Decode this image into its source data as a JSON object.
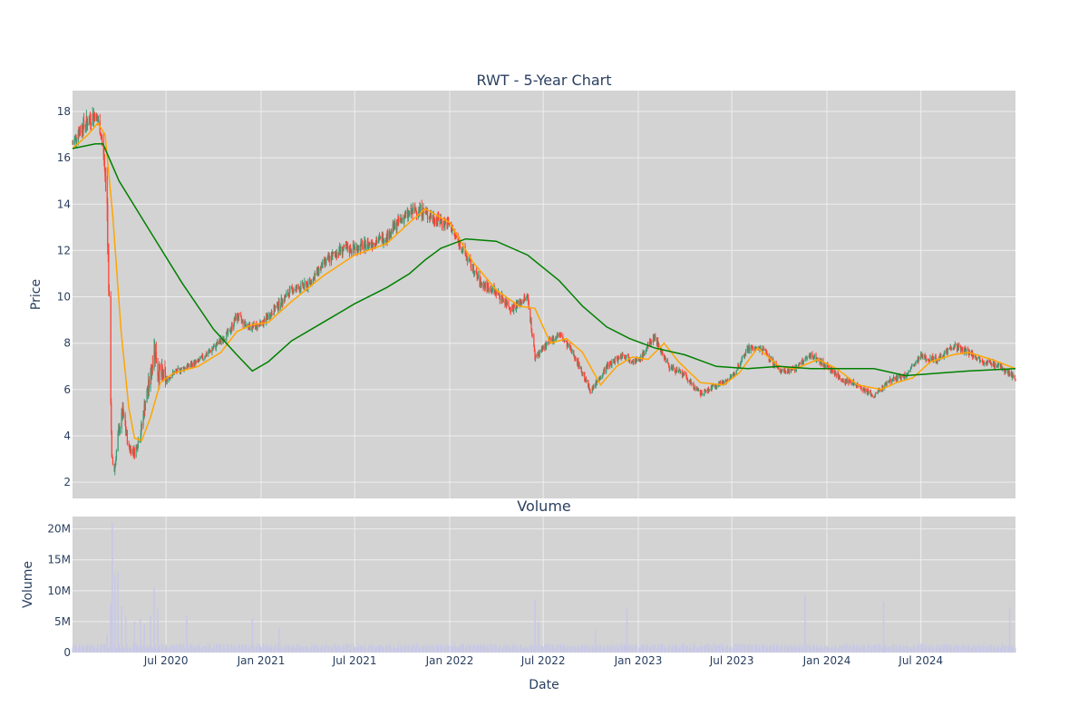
{
  "chart_data": [
    {
      "type": "candlestick",
      "title": "RWT - 5-Year Chart",
      "ylabel": "Price",
      "ylim": [
        1.3,
        18.9
      ],
      "yticks": [
        "2",
        "4",
        "6",
        "8",
        "10",
        "12",
        "14",
        "16",
        "18"
      ],
      "x_range": [
        "2020-01-02",
        "2024-12-31"
      ],
      "grid": true,
      "colors": {
        "up": "#3d9970",
        "down": "#ff4136",
        "ma_short": "#ffa500",
        "ma_long": "#008000",
        "plot_bg": "#d3d3d3",
        "grid": "#eeeeee"
      },
      "close_series": [
        [
          "2020-01-02",
          16.6
        ],
        [
          "2020-01-15",
          17.2
        ],
        [
          "2020-02-01",
          17.6
        ],
        [
          "2020-02-14",
          17.9
        ],
        [
          "2020-02-24",
          17.3
        ],
        [
          "2020-03-02",
          16.2
        ],
        [
          "2020-03-09",
          14.0
        ],
        [
          "2020-03-13",
          9.5
        ],
        [
          "2020-03-18",
          3.0
        ],
        [
          "2020-03-23",
          2.5
        ],
        [
          "2020-03-30",
          4.0
        ],
        [
          "2020-04-08",
          5.0
        ],
        [
          "2020-04-20",
          3.5
        ],
        [
          "2020-05-01",
          3.3
        ],
        [
          "2020-05-12",
          4.0
        ],
        [
          "2020-05-22",
          5.5
        ],
        [
          "2020-06-01",
          6.5
        ],
        [
          "2020-06-08",
          8.0
        ],
        [
          "2020-06-15",
          6.8
        ],
        [
          "2020-07-01",
          6.4
        ],
        [
          "2020-07-15",
          6.7
        ],
        [
          "2020-08-01",
          6.9
        ],
        [
          "2020-09-01",
          7.2
        ],
        [
          "2020-10-01",
          7.8
        ],
        [
          "2020-11-01",
          8.5
        ],
        [
          "2020-11-15",
          9.2
        ],
        [
          "2020-12-01",
          8.8
        ],
        [
          "2020-12-15",
          8.7
        ],
        [
          "2021-01-01",
          8.8
        ],
        [
          "2021-02-01",
          9.6
        ],
        [
          "2021-03-01",
          10.3
        ],
        [
          "2021-04-01",
          10.5
        ],
        [
          "2021-05-01",
          11.4
        ],
        [
          "2021-06-01",
          12.0
        ],
        [
          "2021-07-01",
          12.1
        ],
        [
          "2021-08-01",
          12.3
        ],
        [
          "2021-09-01",
          12.6
        ],
        [
          "2021-10-01",
          13.4
        ],
        [
          "2021-11-01",
          13.8
        ],
        [
          "2021-12-01",
          13.4
        ],
        [
          "2022-01-01",
          13.1
        ],
        [
          "2022-02-01",
          11.8
        ],
        [
          "2022-03-01",
          10.6
        ],
        [
          "2022-04-01",
          10.2
        ],
        [
          "2022-05-01",
          9.5
        ],
        [
          "2022-06-01",
          10.0
        ],
        [
          "2022-06-15",
          7.4
        ],
        [
          "2022-07-01",
          7.8
        ],
        [
          "2022-08-01",
          8.4
        ],
        [
          "2022-09-01",
          7.4
        ],
        [
          "2022-10-01",
          5.9
        ],
        [
          "2022-11-01",
          7.0
        ],
        [
          "2022-12-01",
          7.5
        ],
        [
          "2023-01-01",
          7.2
        ],
        [
          "2023-02-01",
          8.3
        ],
        [
          "2023-03-01",
          7.0
        ],
        [
          "2023-04-01",
          6.6
        ],
        [
          "2023-05-01",
          5.8
        ],
        [
          "2023-06-01",
          6.2
        ],
        [
          "2023-07-01",
          6.5
        ],
        [
          "2023-08-01",
          7.8
        ],
        [
          "2023-09-01",
          7.7
        ],
        [
          "2023-10-01",
          6.8
        ],
        [
          "2023-11-01",
          6.9
        ],
        [
          "2023-12-01",
          7.5
        ],
        [
          "2024-01-01",
          7.0
        ],
        [
          "2024-02-01",
          6.4
        ],
        [
          "2024-03-01",
          6.2
        ],
        [
          "2024-04-01",
          5.7
        ],
        [
          "2024-05-01",
          6.4
        ],
        [
          "2024-06-01",
          6.6
        ],
        [
          "2024-07-01",
          7.4
        ],
        [
          "2024-08-01",
          7.3
        ],
        [
          "2024-09-01",
          7.9
        ],
        [
          "2024-10-01",
          7.6
        ],
        [
          "2024-11-01",
          7.2
        ],
        [
          "2024-12-01",
          7.0
        ],
        [
          "2024-12-31",
          6.5
        ]
      ],
      "ma_short": [
        [
          "2020-01-02",
          16.4
        ],
        [
          "2020-02-01",
          17.0
        ],
        [
          "2020-02-20",
          17.5
        ],
        [
          "2020-03-05",
          17.0
        ],
        [
          "2020-03-20",
          13.5
        ],
        [
          "2020-04-05",
          8.5
        ],
        [
          "2020-04-20",
          5.2
        ],
        [
          "2020-05-01",
          3.9
        ],
        [
          "2020-05-15",
          3.8
        ],
        [
          "2020-06-01",
          4.8
        ],
        [
          "2020-06-20",
          6.3
        ],
        [
          "2020-07-15",
          6.7
        ],
        [
          "2020-09-01",
          7.0
        ],
        [
          "2020-10-15",
          7.6
        ],
        [
          "2020-11-15",
          8.5
        ],
        [
          "2020-12-15",
          8.8
        ],
        [
          "2021-01-15",
          8.9
        ],
        [
          "2021-03-01",
          9.8
        ],
        [
          "2021-05-01",
          10.9
        ],
        [
          "2021-07-01",
          11.8
        ],
        [
          "2021-09-01",
          12.3
        ],
        [
          "2021-10-15",
          13.2
        ],
        [
          "2021-11-15",
          13.8
        ],
        [
          "2022-01-01",
          13.2
        ],
        [
          "2022-02-15",
          11.5
        ],
        [
          "2022-04-01",
          10.3
        ],
        [
          "2022-05-15",
          9.6
        ],
        [
          "2022-06-15",
          9.5
        ],
        [
          "2022-07-15",
          8.0
        ],
        [
          "2022-08-15",
          8.2
        ],
        [
          "2022-09-15",
          7.6
        ],
        [
          "2022-10-20",
          6.2
        ],
        [
          "2022-11-20",
          7.0
        ],
        [
          "2022-12-20",
          7.4
        ],
        [
          "2023-01-20",
          7.3
        ],
        [
          "2023-02-20",
          8.0
        ],
        [
          "2023-03-20",
          7.2
        ],
        [
          "2023-05-01",
          6.3
        ],
        [
          "2023-06-15",
          6.2
        ],
        [
          "2023-07-15",
          6.7
        ],
        [
          "2023-08-20",
          7.8
        ],
        [
          "2023-10-01",
          7.0
        ],
        [
          "2023-11-01",
          6.9
        ],
        [
          "2023-12-15",
          7.3
        ],
        [
          "2024-01-20",
          6.9
        ],
        [
          "2024-03-01",
          6.2
        ],
        [
          "2024-04-15",
          6.0
        ],
        [
          "2024-05-15",
          6.3
        ],
        [
          "2024-06-15",
          6.5
        ],
        [
          "2024-07-20",
          7.2
        ],
        [
          "2024-09-01",
          7.5
        ],
        [
          "2024-10-01",
          7.6
        ],
        [
          "2024-11-15",
          7.3
        ],
        [
          "2024-12-31",
          6.9
        ]
      ],
      "ma_long": [
        [
          "2020-01-02",
          16.4
        ],
        [
          "2020-02-15",
          16.6
        ],
        [
          "2020-03-01",
          16.6
        ],
        [
          "2020-04-01",
          15.0
        ],
        [
          "2020-06-01",
          12.8
        ],
        [
          "2020-08-01",
          10.6
        ],
        [
          "2020-10-01",
          8.6
        ],
        [
          "2020-11-15",
          7.5
        ],
        [
          "2020-12-15",
          6.8
        ],
        [
          "2021-01-15",
          7.2
        ],
        [
          "2021-03-01",
          8.1
        ],
        [
          "2021-05-01",
          8.9
        ],
        [
          "2021-07-01",
          9.7
        ],
        [
          "2021-09-01",
          10.4
        ],
        [
          "2021-10-15",
          11.0
        ],
        [
          "2021-11-15",
          11.6
        ],
        [
          "2021-12-15",
          12.1
        ],
        [
          "2022-02-01",
          12.5
        ],
        [
          "2022-04-01",
          12.4
        ],
        [
          "2022-06-01",
          11.8
        ],
        [
          "2022-08-01",
          10.7
        ],
        [
          "2022-09-15",
          9.6
        ],
        [
          "2022-11-01",
          8.7
        ],
        [
          "2022-12-15",
          8.2
        ],
        [
          "2023-02-01",
          7.8
        ],
        [
          "2023-04-01",
          7.5
        ],
        [
          "2023-06-01",
          7.0
        ],
        [
          "2023-08-01",
          6.9
        ],
        [
          "2023-10-01",
          7.0
        ],
        [
          "2023-12-01",
          6.9
        ],
        [
          "2024-02-01",
          6.9
        ],
        [
          "2024-04-01",
          6.9
        ],
        [
          "2024-06-01",
          6.6
        ],
        [
          "2024-08-01",
          6.7
        ],
        [
          "2024-10-01",
          6.8
        ],
        [
          "2024-12-31",
          6.9
        ]
      ]
    },
    {
      "type": "bar",
      "title": "Volume",
      "xlabel": "Date",
      "ylabel": "Volume",
      "ylim": [
        0,
        22000000
      ],
      "yticks": [
        "0",
        "5M",
        "10M",
        "15M",
        "20M"
      ],
      "xticks": [
        "Jul 2020",
        "Jan 2021",
        "Jul 2021",
        "Jan 2022",
        "Jul 2022",
        "Jan 2023",
        "Jul 2023",
        "Jan 2024",
        "Jul 2024"
      ],
      "bar_color": "#c8c8e6",
      "volume_spikes": [
        [
          "2020-03-09",
          3000000
        ],
        [
          "2020-03-16",
          8000000
        ],
        [
          "2020-03-19",
          21000000
        ],
        [
          "2020-03-24",
          12500000
        ],
        [
          "2020-03-30",
          13000000
        ],
        [
          "2020-04-06",
          7500000
        ],
        [
          "2020-04-14",
          6000000
        ],
        [
          "2020-05-01",
          5000000
        ],
        [
          "2020-05-12",
          5500000
        ],
        [
          "2020-05-20",
          4500000
        ],
        [
          "2020-06-01",
          6000000
        ],
        [
          "2020-06-08",
          10500000
        ],
        [
          "2020-06-15",
          7000000
        ],
        [
          "2020-08-10",
          6000000
        ],
        [
          "2020-12-15",
          5500000
        ],
        [
          "2021-02-05",
          4000000
        ],
        [
          "2022-06-15",
          8500000
        ],
        [
          "2022-06-22",
          5000000
        ],
        [
          "2022-10-10",
          3600000
        ],
        [
          "2022-12-10",
          7300000
        ],
        [
          "2023-11-20",
          9400000
        ],
        [
          "2024-04-20",
          8200000
        ],
        [
          "2024-12-20",
          7200000
        ]
      ]
    }
  ]
}
